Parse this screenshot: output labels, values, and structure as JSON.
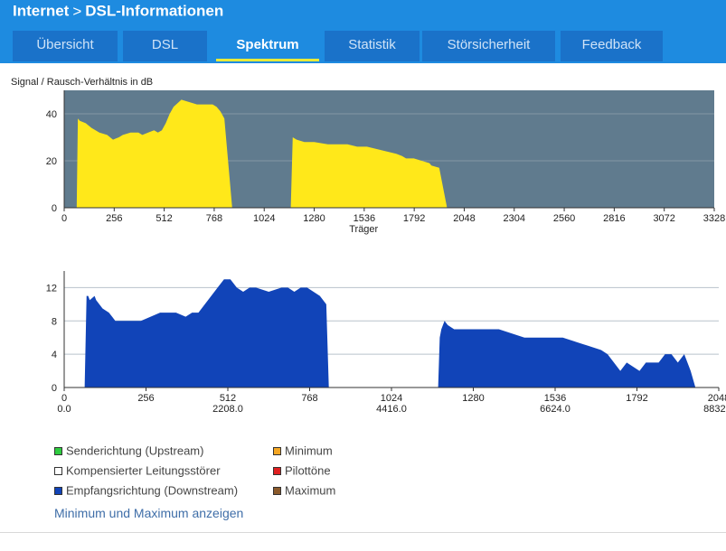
{
  "header": {
    "breadcrumb": [
      "Internet",
      "DSL-Informationen"
    ],
    "tabs": [
      {
        "label": "Übersicht",
        "active": false
      },
      {
        "label": "DSL",
        "active": false
      },
      {
        "label": "Spektrum",
        "active": true
      },
      {
        "label": "Statistik",
        "active": false
      },
      {
        "label": "Störsicherheit",
        "active": false
      },
      {
        "label": "Feedback",
        "active": false
      }
    ]
  },
  "colors": {
    "header_bg": "#1e8be0",
    "tab_bg": "#1a72c9",
    "tab_active_underline": "#e7ea3a",
    "snr_fill": "#ffe81a",
    "snr_bg": "#607b8e",
    "bits_fill": "#1144b8",
    "link": "#3f6ea8"
  },
  "chart_data": [
    {
      "type": "area",
      "title": "Signal / Rausch-Verhältnis in dB",
      "xlabel": "Träger",
      "ylabel": "",
      "xlim": [
        0,
        3328
      ],
      "ylim": [
        0,
        50
      ],
      "xticks": [
        0,
        256,
        512,
        768,
        1024,
        1280,
        1536,
        1792,
        2048,
        2304,
        2560,
        2816,
        3072,
        3328
      ],
      "yticks": [
        0,
        20,
        40
      ],
      "grid": true,
      "series": [
        {
          "x": [
            64,
            70,
            80,
            110,
            140,
            180,
            220,
            250,
            280,
            300,
            340,
            380,
            400,
            430,
            460,
            480,
            500,
            520,
            540,
            560,
            600,
            640,
            680,
            720,
            760,
            780,
            800,
            820,
            860
          ],
          "y": [
            0,
            38,
            37,
            36,
            34,
            32,
            31,
            29,
            30,
            31,
            32,
            32,
            31,
            32,
            33,
            32,
            33,
            36,
            40,
            43,
            46,
            45,
            44,
            44,
            44,
            43,
            41,
            38,
            0
          ]
        },
        {
          "x": [
            1160,
            1170,
            1190,
            1230,
            1280,
            1350,
            1400,
            1450,
            1500,
            1550,
            1600,
            1650,
            1700,
            1730,
            1750,
            1790,
            1830,
            1870,
            1880,
            1920,
            1960
          ],
          "y": [
            0,
            30,
            29,
            28,
            28,
            27,
            27,
            27,
            26,
            26,
            25,
            24,
            23,
            22,
            21,
            21,
            20,
            19,
            18,
            17,
            0
          ]
        }
      ]
    },
    {
      "type": "area",
      "title": "",
      "xlabel": "",
      "ylabel": "",
      "xlim": [
        0,
        2048
      ],
      "ylim": [
        0,
        14
      ],
      "xticks": [
        0,
        256,
        512,
        768,
        1024,
        1280,
        1536,
        1792,
        2048
      ],
      "xticks_secondary": [
        "0.0",
        "2208.0",
        "4416.0",
        "6624.0",
        "8832.0"
      ],
      "yticks": [
        0,
        4,
        8,
        12
      ],
      "grid": true,
      "series": [
        {
          "x": [
            64,
            70,
            75,
            80,
            95,
            100,
            110,
            120,
            140,
            150,
            160,
            180,
            200,
            240,
            300,
            330,
            350,
            380,
            400,
            420,
            440,
            460,
            480,
            500,
            520,
            540,
            560,
            580,
            600,
            640,
            680,
            700,
            720,
            740,
            760,
            780,
            800,
            820,
            828
          ],
          "y": [
            0,
            11,
            11,
            10.5,
            11,
            10.5,
            10,
            9.5,
            9,
            8.5,
            8,
            8,
            8,
            8,
            9,
            9,
            9,
            8.5,
            9,
            9,
            10,
            11,
            12,
            13,
            13,
            12,
            11.5,
            12,
            12,
            11.5,
            12,
            12,
            11.5,
            12,
            12,
            11.5,
            11,
            10,
            0
          ]
        },
        {
          "x": [
            1170,
            1175,
            1180,
            1190,
            1200,
            1220,
            1250,
            1290,
            1320,
            1360,
            1400,
            1440,
            1480,
            1520,
            1560,
            1600,
            1640,
            1680,
            1700,
            1720,
            1740,
            1760,
            1780,
            1800,
            1820,
            1840,
            1860,
            1880,
            1900,
            1920,
            1940,
            1960,
            1975
          ],
          "y": [
            0,
            6,
            7,
            8,
            7.5,
            7,
            7,
            7,
            7,
            7,
            6.5,
            6,
            6,
            6,
            6,
            5.5,
            5,
            4.5,
            4,
            3,
            2,
            3,
            2.5,
            2,
            3,
            3,
            3,
            4,
            4,
            3,
            4,
            2,
            0
          ]
        }
      ]
    }
  ],
  "legend": [
    {
      "label": "Senderichtung (Upstream)",
      "color": "#2ecc40"
    },
    {
      "label": "Minimum",
      "color": "#f5a623"
    },
    {
      "label": "Kompensierter Leitungsstörer",
      "color": "#ffffff"
    },
    {
      "label": "Pilottöne",
      "color": "#e02020"
    },
    {
      "label": "Empfangsrichtung (Downstream)",
      "color": "#1144b8"
    },
    {
      "label": "Maximum",
      "color": "#8b5a2b"
    }
  ],
  "toggle_link": "Minimum und Maximum anzeigen"
}
